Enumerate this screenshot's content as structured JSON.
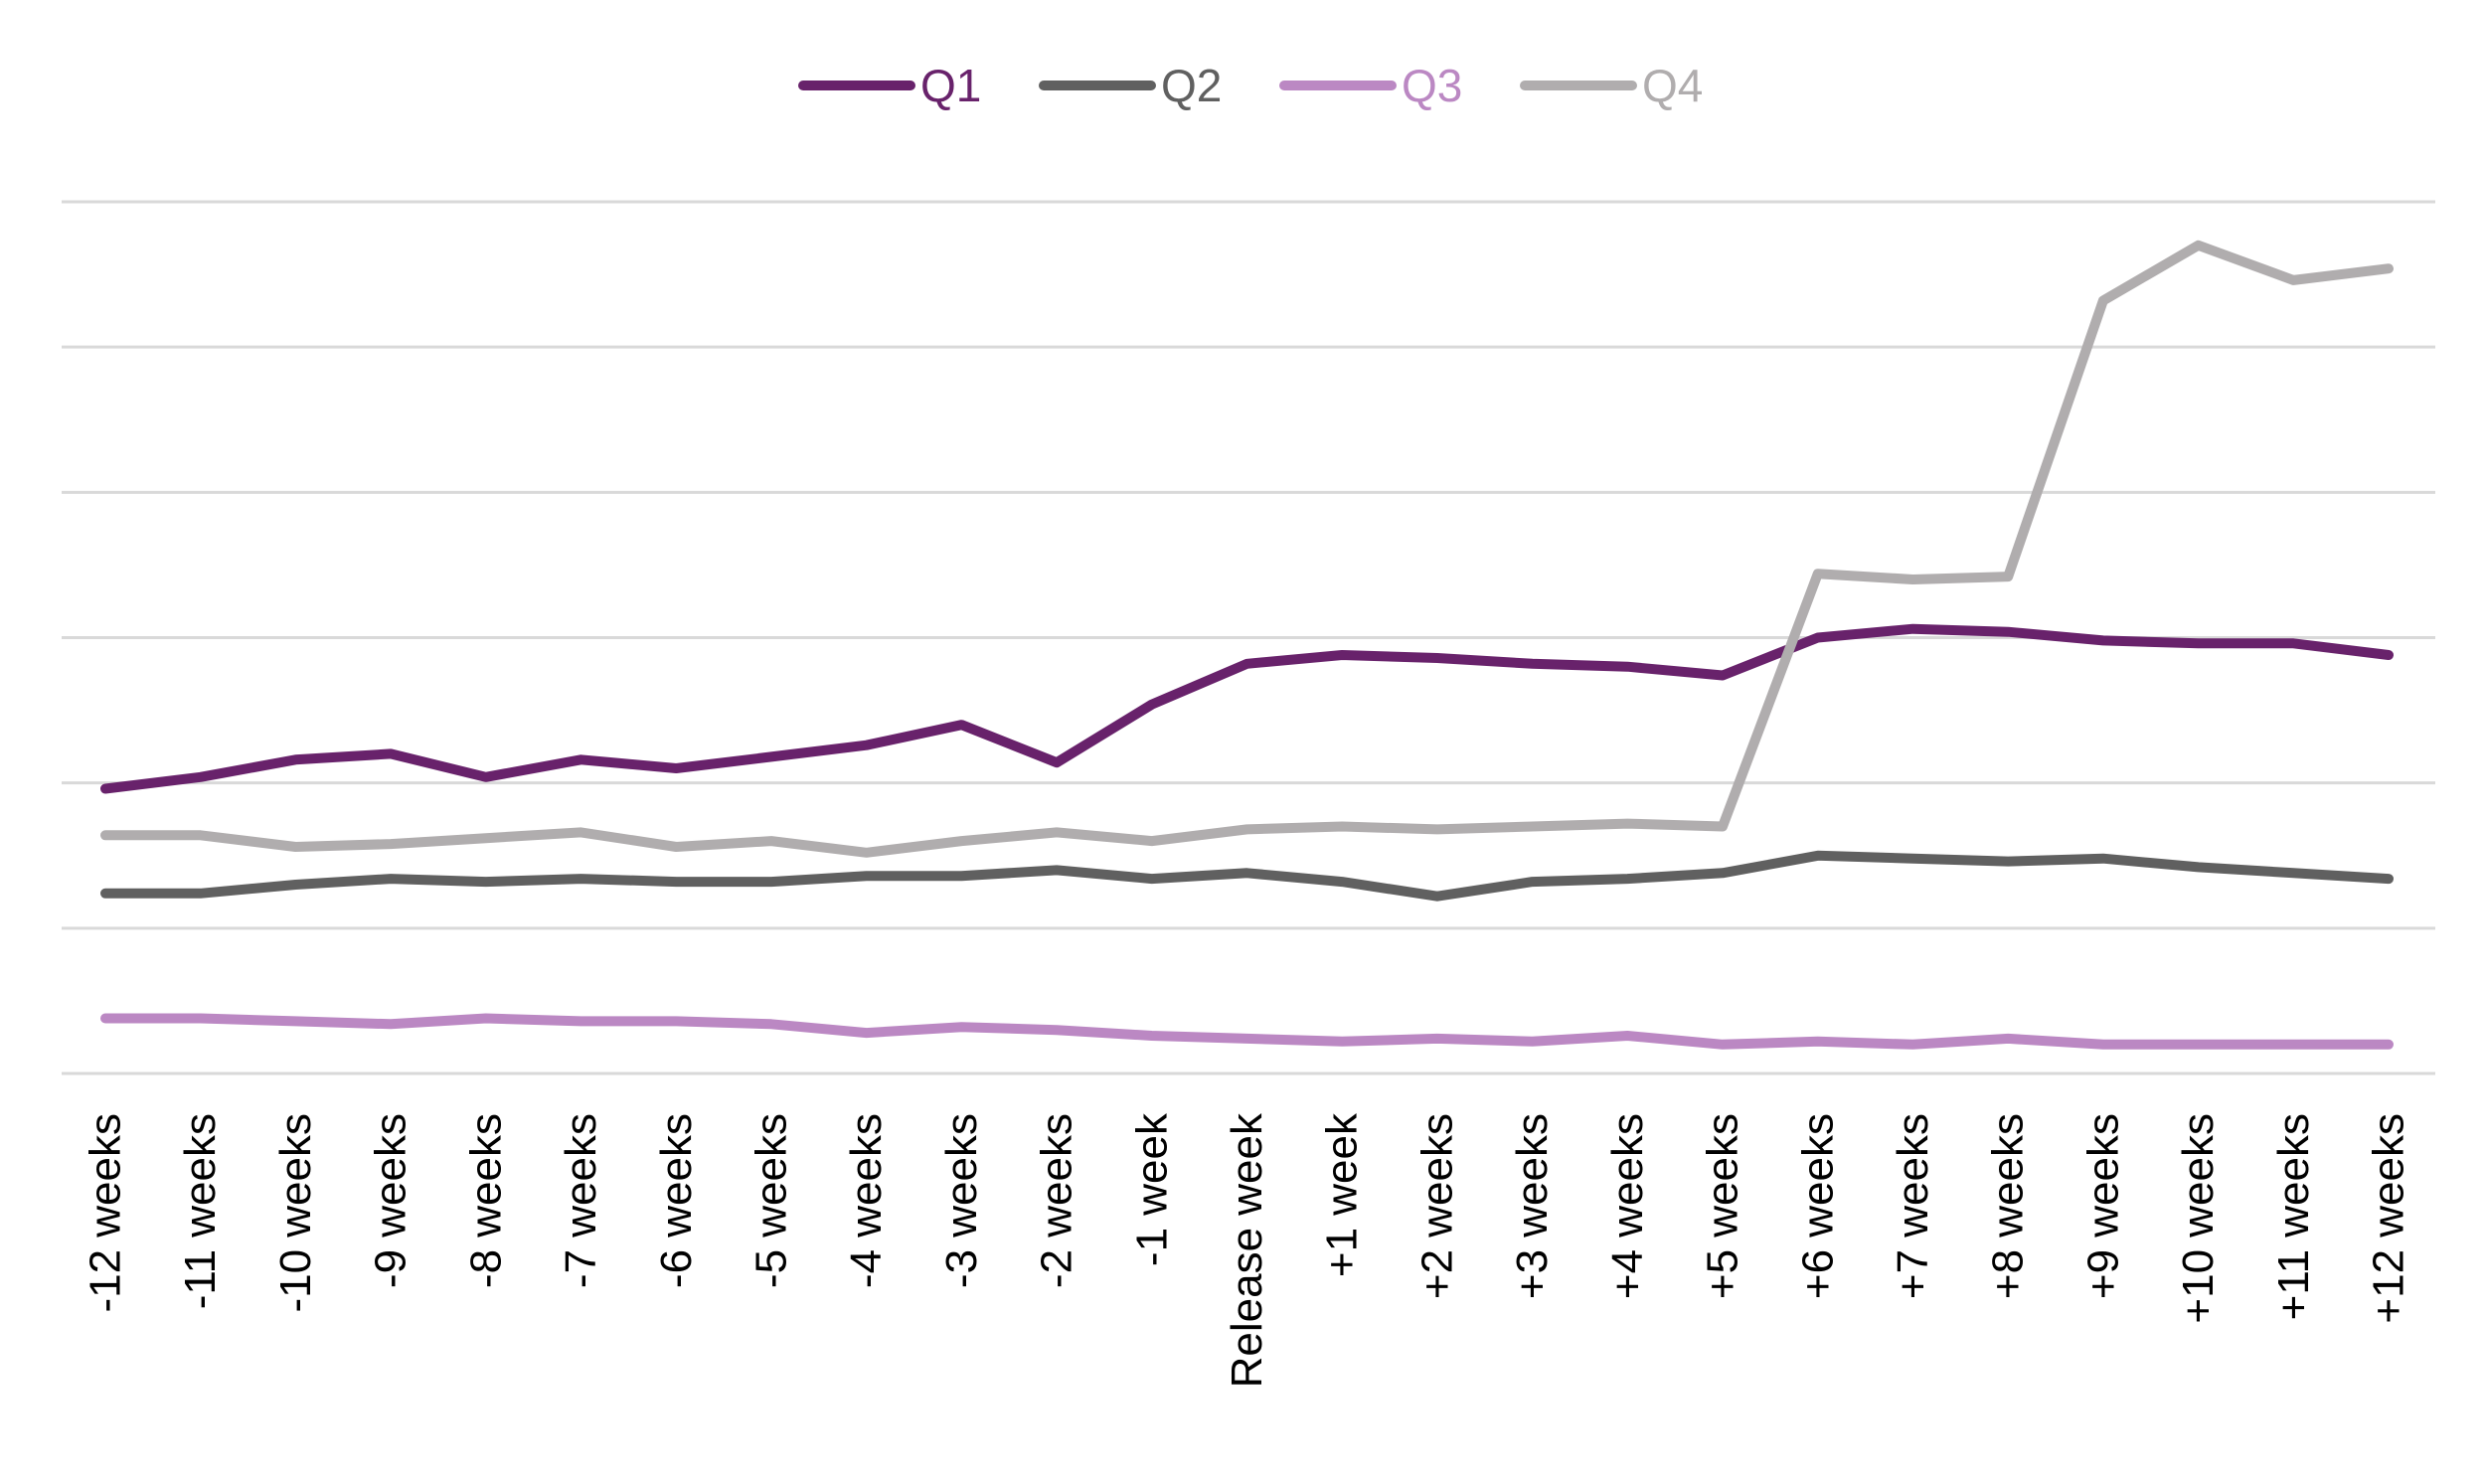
{
  "chart_data": {
    "type": "line",
    "title": "",
    "xlabel": "",
    "ylabel": "",
    "ylim": [
      0,
      6
    ],
    "grid": true,
    "legend_position": "top-center",
    "categories": [
      "-12 weeks",
      "-11 weeks",
      "-10 weeks",
      "-9 weeks",
      "-8 weeks",
      "-7 weeks",
      "-6 weeks",
      "-5 weeks",
      "-4 weeks",
      "-3 weeks",
      "-2 weeks",
      "-1 week",
      "Release week",
      "+1 week",
      "+2 weeks",
      "+3 weeks",
      "+4 weeks",
      "+5 weeks",
      "+6 weeks",
      "+7 weeks",
      "+8 weeks",
      "+9 weeks",
      "+10 weeks",
      "+11 weeks",
      "+12 weeks"
    ],
    "series": [
      {
        "name": "Q1",
        "color": "#68226b",
        "values": [
          1.96,
          2.04,
          2.16,
          2.2,
          2.04,
          2.16,
          2.1,
          2.18,
          2.26,
          2.4,
          2.14,
          2.54,
          2.82,
          2.88,
          2.86,
          2.82,
          2.8,
          2.74,
          3.0,
          3.06,
          3.04,
          2.98,
          2.96,
          2.96,
          2.88
        ]
      },
      {
        "name": "Q2",
        "color": "#606060",
        "values": [
          1.24,
          1.24,
          1.3,
          1.34,
          1.32,
          1.34,
          1.32,
          1.32,
          1.36,
          1.36,
          1.4,
          1.34,
          1.38,
          1.32,
          1.22,
          1.32,
          1.34,
          1.38,
          1.5,
          1.48,
          1.46,
          1.48,
          1.42,
          1.38,
          1.34
        ]
      },
      {
        "name": "Q3",
        "color": "#bb88c3",
        "values": [
          0.38,
          0.38,
          0.36,
          0.34,
          0.38,
          0.36,
          0.36,
          0.34,
          0.28,
          0.32,
          0.3,
          0.26,
          0.24,
          0.22,
          0.24,
          0.22,
          0.26,
          0.2,
          0.22,
          0.2,
          0.24,
          0.2,
          0.2,
          0.2,
          0.2
        ]
      },
      {
        "name": "Q4",
        "color": "#b0adae",
        "values": [
          1.64,
          1.64,
          1.56,
          1.58,
          1.62,
          1.66,
          1.56,
          1.6,
          1.52,
          1.6,
          1.66,
          1.6,
          1.68,
          1.7,
          1.68,
          1.7,
          1.72,
          1.7,
          3.44,
          3.4,
          3.42,
          5.32,
          5.7,
          5.46,
          5.54
        ]
      }
    ]
  }
}
